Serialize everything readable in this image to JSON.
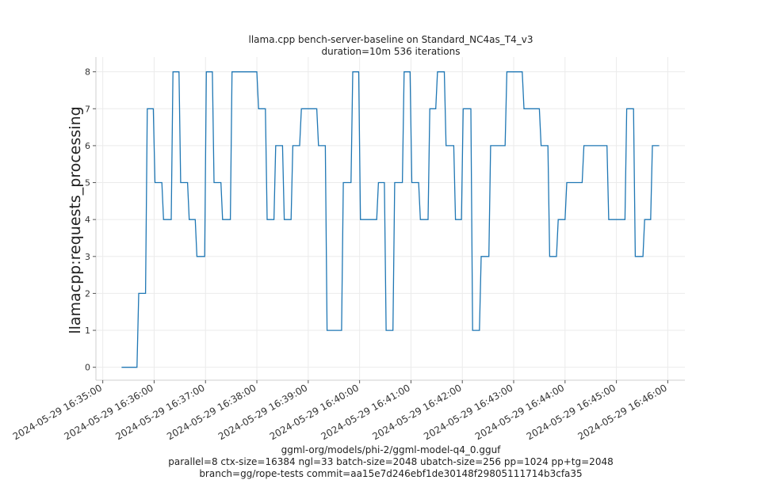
{
  "chart_data": {
    "type": "line",
    "title": "llama.cpp bench-server-baseline on Standard_NC4as_T4_v3",
    "subtitle": "duration=10m 536 iterations",
    "xlabel": "",
    "ylabel": "llamacpp:requests_processing",
    "footer": [
      "ggml-org/models/phi-2/ggml-model-q4_0.gguf",
      "parallel=8 ctx-size=16384 ngl=33 batch-size=2048 ubatch-size=256 pp=1024 pp+tg=2048",
      "branch=gg/rope-tests commit=aa15e7d246ebf1de30148f29805111714b3cfa35"
    ],
    "xlim": [
      "2024-05-29 16:34:52",
      "2024-05-29 16:46:20"
    ],
    "ylim": [
      -0.35,
      8.4
    ],
    "x_ticks": [
      "2024-05-29 16:35:00",
      "2024-05-29 16:36:00",
      "2024-05-29 16:37:00",
      "2024-05-29 16:38:00",
      "2024-05-29 16:39:00",
      "2024-05-29 16:40:00",
      "2024-05-29 16:41:00",
      "2024-05-29 16:42:00",
      "2024-05-29 16:43:00",
      "2024-05-29 16:44:00",
      "2024-05-29 16:45:00",
      "2024-05-29 16:46:00"
    ],
    "y_ticks": [
      0,
      1,
      2,
      3,
      4,
      5,
      6,
      7,
      8
    ],
    "grid": true,
    "color": "#1f77b4",
    "series": [
      {
        "name": "",
        "x": [
          "2024-05-29 16:35:22",
          "2024-05-29 16:35:40",
          "2024-05-29 16:35:42",
          "2024-05-29 16:35:50",
          "2024-05-29 16:35:52",
          "2024-05-29 16:35:59",
          "2024-05-29 16:36:01",
          "2024-05-29 16:36:09",
          "2024-05-29 16:36:11",
          "2024-05-29 16:36:20",
          "2024-05-29 16:36:22",
          "2024-05-29 16:36:29",
          "2024-05-29 16:36:31",
          "2024-05-29 16:36:39",
          "2024-05-29 16:36:41",
          "2024-05-29 16:36:48",
          "2024-05-29 16:36:50",
          "2024-05-29 16:36:59",
          "2024-05-29 16:37:01",
          "2024-05-29 16:37:08",
          "2024-05-29 16:37:10",
          "2024-05-29 16:37:18",
          "2024-05-29 16:37:20",
          "2024-05-29 16:37:29",
          "2024-05-29 16:37:31",
          "2024-05-29 16:38:00",
          "2024-05-29 16:38:02",
          "2024-05-29 16:38:10",
          "2024-05-29 16:38:12",
          "2024-05-29 16:38:20",
          "2024-05-29 16:38:22",
          "2024-05-29 16:38:30",
          "2024-05-29 16:38:32",
          "2024-05-29 16:38:40",
          "2024-05-29 16:38:42",
          "2024-05-29 16:38:50",
          "2024-05-29 16:38:52",
          "2024-05-29 16:39:10",
          "2024-05-29 16:39:12",
          "2024-05-29 16:39:20",
          "2024-05-29 16:39:22",
          "2024-05-29 16:39:39",
          "2024-05-29 16:39:41",
          "2024-05-29 16:39:50",
          "2024-05-29 16:39:52",
          "2024-05-29 16:39:59",
          "2024-05-29 16:40:01",
          "2024-05-29 16:40:20",
          "2024-05-29 16:40:22",
          "2024-05-29 16:40:29",
          "2024-05-29 16:40:31",
          "2024-05-29 16:40:39",
          "2024-05-29 16:40:41",
          "2024-05-29 16:40:50",
          "2024-05-29 16:40:52",
          "2024-05-29 16:40:59",
          "2024-05-29 16:41:01",
          "2024-05-29 16:41:09",
          "2024-05-29 16:41:11",
          "2024-05-29 16:41:20",
          "2024-05-29 16:41:22",
          "2024-05-29 16:41:29",
          "2024-05-29 16:41:31",
          "2024-05-29 16:41:39",
          "2024-05-29 16:41:41",
          "2024-05-29 16:41:50",
          "2024-05-29 16:41:52",
          "2024-05-29 16:41:59",
          "2024-05-29 16:42:01",
          "2024-05-29 16:42:10",
          "2024-05-29 16:42:12",
          "2024-05-29 16:42:20",
          "2024-05-29 16:42:22",
          "2024-05-29 16:42:31",
          "2024-05-29 16:42:33",
          "2024-05-29 16:42:50",
          "2024-05-29 16:42:52",
          "2024-05-29 16:43:10",
          "2024-05-29 16:43:12",
          "2024-05-29 16:43:30",
          "2024-05-29 16:43:32",
          "2024-05-29 16:43:40",
          "2024-05-29 16:43:42",
          "2024-05-29 16:43:50",
          "2024-05-29 16:43:52",
          "2024-05-29 16:44:00",
          "2024-05-29 16:44:02",
          "2024-05-29 16:44:20",
          "2024-05-29 16:44:22",
          "2024-05-29 16:44:49",
          "2024-05-29 16:44:51",
          "2024-05-29 16:45:10",
          "2024-05-29 16:45:12",
          "2024-05-29 16:45:20",
          "2024-05-29 16:45:22",
          "2024-05-29 16:45:31",
          "2024-05-29 16:45:33",
          "2024-05-29 16:45:40",
          "2024-05-29 16:45:42",
          "2024-05-29 16:45:50"
        ],
        "values": [
          0,
          0,
          2,
          2,
          7,
          7,
          5,
          5,
          4,
          4,
          8,
          8,
          5,
          5,
          4,
          4,
          3,
          3,
          8,
          8,
          5,
          5,
          4,
          4,
          8,
          8,
          7,
          7,
          4,
          4,
          6,
          6,
          4,
          4,
          6,
          6,
          7,
          7,
          6,
          6,
          1,
          1,
          5,
          5,
          8,
          8,
          4,
          4,
          5,
          5,
          1,
          1,
          5,
          5,
          8,
          8,
          5,
          5,
          4,
          4,
          7,
          7,
          8,
          8,
          6,
          6,
          4,
          4,
          7,
          7,
          1,
          1,
          3,
          3,
          6,
          6,
          8,
          8,
          7,
          7,
          6,
          6,
          3,
          3,
          4,
          4,
          5,
          5,
          6,
          6,
          4,
          4,
          7,
          7,
          3,
          3,
          4,
          4,
          6,
          6
        ]
      }
    ]
  }
}
